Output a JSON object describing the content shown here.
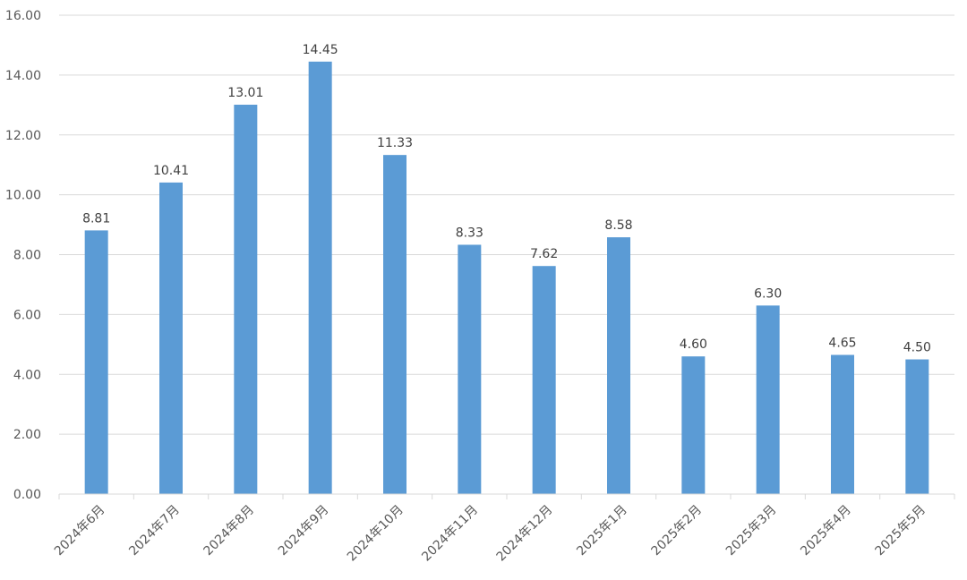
{
  "chart_data": {
    "type": "bar",
    "categories": [
      "2024年6月",
      "2024年7月",
      "2024年8月",
      "2024年9月",
      "2024年10月",
      "2024年11月",
      "2024年12月",
      "2025年1月",
      "2025年2月",
      "2025年3月",
      "2025年4月",
      "2025年5月"
    ],
    "values": [
      8.81,
      10.41,
      13.01,
      14.45,
      11.33,
      8.33,
      7.62,
      8.58,
      4.6,
      6.3,
      4.65,
      4.5
    ],
    "data_labels": [
      "8.81",
      "10.41",
      "13.01",
      "14.45",
      "11.33",
      "8.33",
      "7.62",
      "8.58",
      "4.60",
      "6.30",
      "4.65",
      "4.50"
    ],
    "y_ticks": [
      "0.00",
      "2.00",
      "4.00",
      "6.00",
      "8.00",
      "10.00",
      "12.00",
      "14.00",
      "16.00"
    ],
    "ylim": [
      0,
      16
    ],
    "y_tick_step": 2,
    "grid": true,
    "legend": "none",
    "bar_color": "#5b9bd5",
    "title": "",
    "xlabel": "",
    "ylabel": ""
  }
}
